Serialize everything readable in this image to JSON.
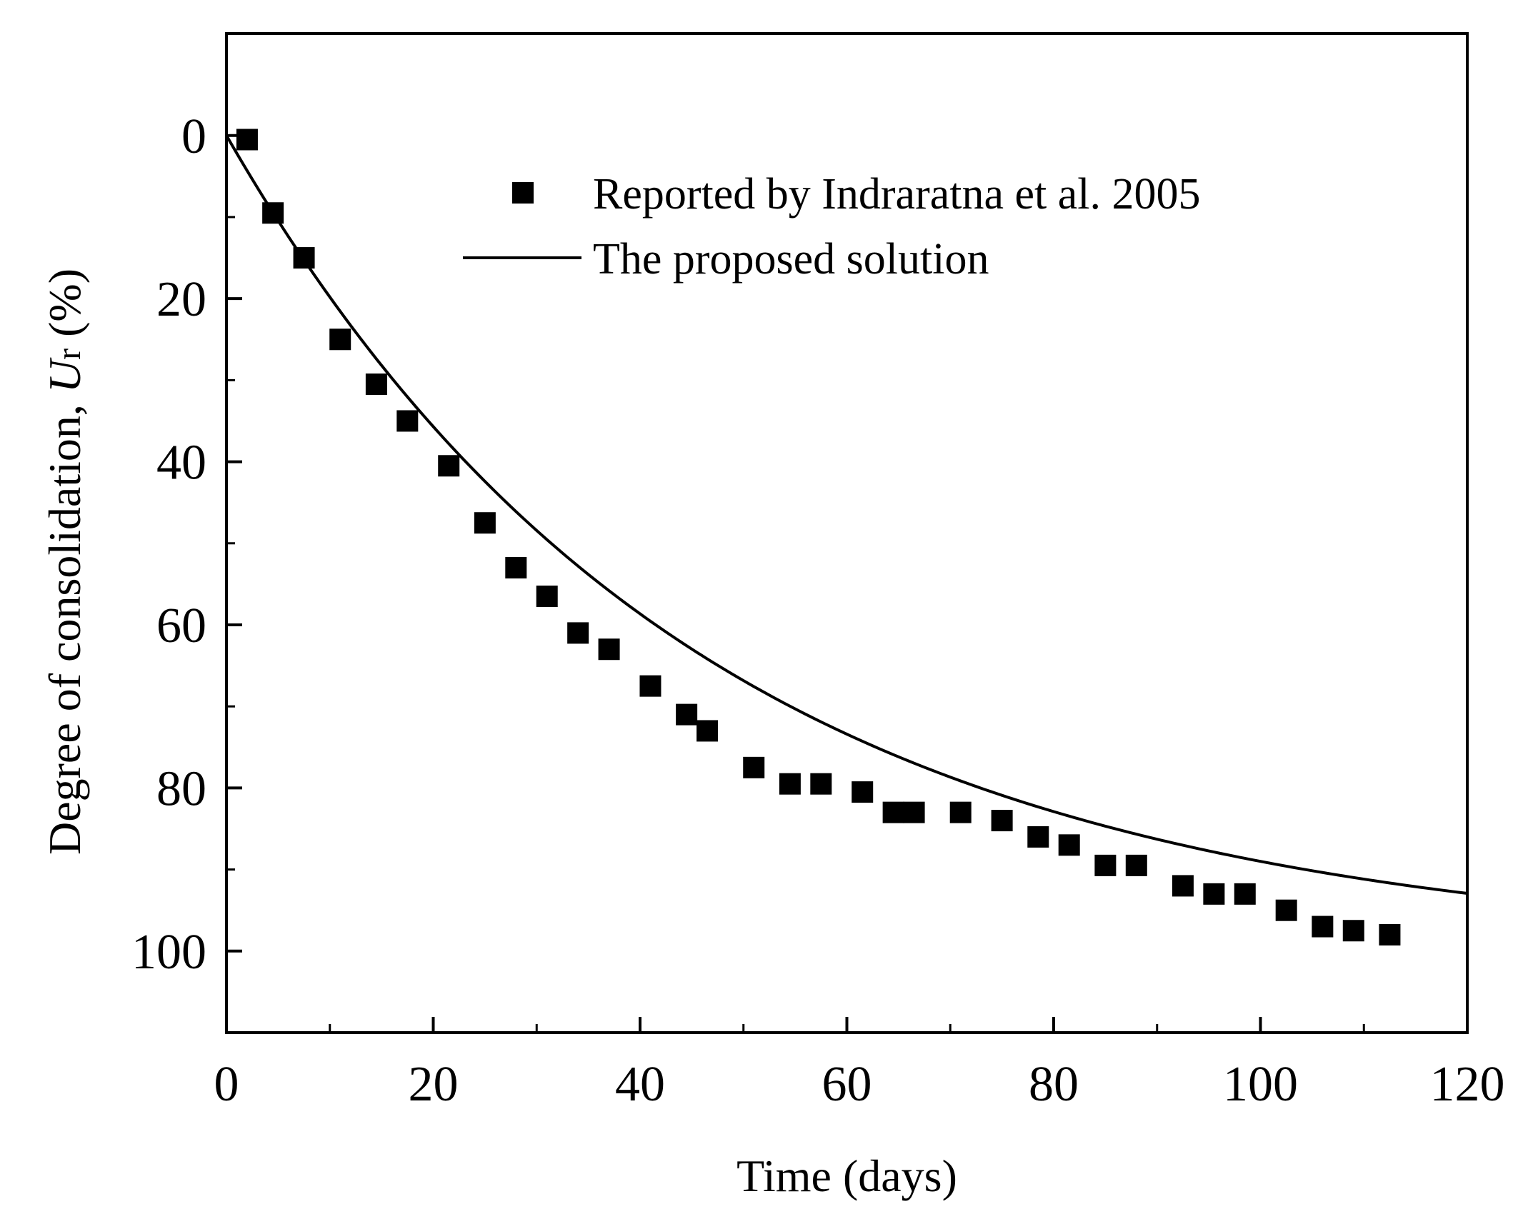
{
  "chart_data": {
    "type": "scatter",
    "title": "",
    "xlabel": "Time (days)",
    "ylabel": {
      "prefix": "Degree of  consolidation, ",
      "symbol": "U",
      "subscript": "r",
      "suffix": " (%)"
    },
    "xlim": [
      0,
      120
    ],
    "ylim": [
      110,
      -12.5
    ],
    "y_inverted": true,
    "x_major_ticks": [
      0,
      20,
      40,
      60,
      80,
      100,
      120
    ],
    "x_minor_ticks": [
      10,
      30,
      50,
      70,
      90,
      110
    ],
    "y_major_ticks": [
      0,
      20,
      40,
      60,
      80,
      100
    ],
    "y_minor_ticks": [
      10,
      30,
      50,
      70,
      90
    ],
    "legend_position": "top-right",
    "series": [
      {
        "name": "Reported by Indraratna et al. 2005",
        "kind": "scatter",
        "marker": "square",
        "color": "#000000",
        "points": [
          {
            "x": 2.0,
            "y": 0.5
          },
          {
            "x": 4.5,
            "y": 9.5
          },
          {
            "x": 7.5,
            "y": 15.0
          },
          {
            "x": 11.0,
            "y": 25.0
          },
          {
            "x": 14.5,
            "y": 30.5
          },
          {
            "x": 17.5,
            "y": 35.0
          },
          {
            "x": 21.5,
            "y": 40.5
          },
          {
            "x": 25.0,
            "y": 47.5
          },
          {
            "x": 28.0,
            "y": 53.0
          },
          {
            "x": 31.0,
            "y": 56.5
          },
          {
            "x": 34.0,
            "y": 61.0
          },
          {
            "x": 37.0,
            "y": 63.0
          },
          {
            "x": 41.0,
            "y": 67.5
          },
          {
            "x": 44.5,
            "y": 71.0
          },
          {
            "x": 46.5,
            "y": 73.0
          },
          {
            "x": 51.0,
            "y": 77.5
          },
          {
            "x": 54.5,
            "y": 79.5
          },
          {
            "x": 57.5,
            "y": 79.5
          },
          {
            "x": 61.5,
            "y": 80.5
          },
          {
            "x": 64.5,
            "y": 83.0
          },
          {
            "x": 66.5,
            "y": 83.0
          },
          {
            "x": 71.0,
            "y": 83.0
          },
          {
            "x": 75.0,
            "y": 84.0
          },
          {
            "x": 78.5,
            "y": 86.0
          },
          {
            "x": 81.5,
            "y": 87.0
          },
          {
            "x": 85.0,
            "y": 89.5
          },
          {
            "x": 88.0,
            "y": 89.5
          },
          {
            "x": 92.5,
            "y": 92.0
          },
          {
            "x": 95.5,
            "y": 93.0
          },
          {
            "x": 98.5,
            "y": 93.0
          },
          {
            "x": 102.5,
            "y": 95.0
          },
          {
            "x": 106.0,
            "y": 97.0
          },
          {
            "x": 109.0,
            "y": 97.5
          },
          {
            "x": 112.5,
            "y": 98.0
          }
        ]
      },
      {
        "name": "The proposed solution",
        "kind": "line",
        "color": "#000000",
        "model": "1-exp(-t/tau)",
        "tau_days": 45.3,
        "t_range": [
          0,
          120
        ],
        "points": [
          {
            "x": 0,
            "y": 0
          },
          {
            "x": 20,
            "y": 35.7
          },
          {
            "x": 40,
            "y": 58.6
          },
          {
            "x": 60,
            "y": 73.4
          },
          {
            "x": 80,
            "y": 82.9
          },
          {
            "x": 100,
            "y": 89.0
          },
          {
            "x": 120,
            "y": 93.0
          }
        ]
      }
    ]
  }
}
